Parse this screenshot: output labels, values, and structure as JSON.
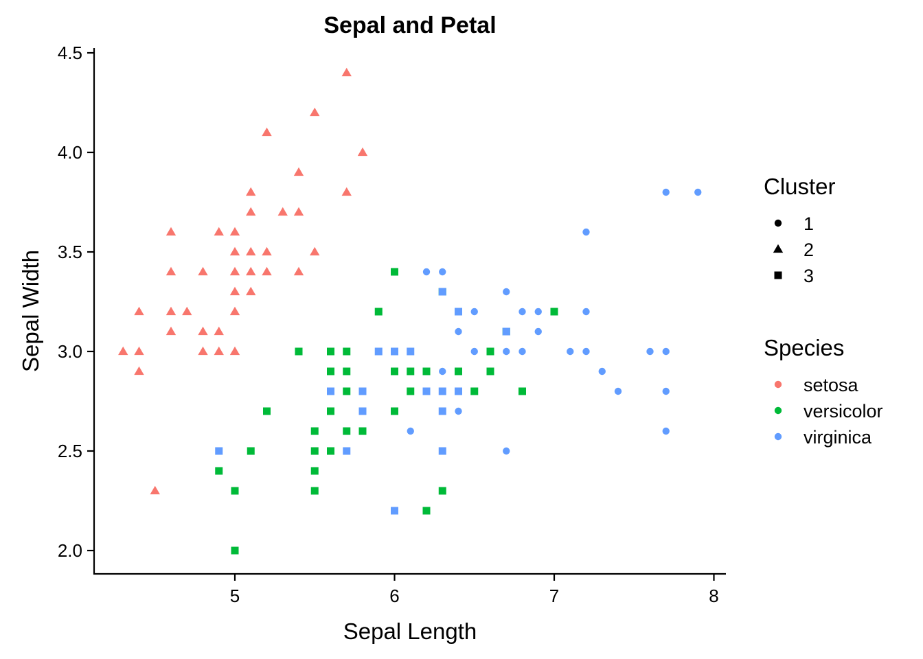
{
  "chart_data": {
    "type": "scatter",
    "title": "Sepal and Petal",
    "xlabel": "Sepal Length",
    "ylabel": "Sepal Width",
    "xlim": [
      4.2,
      8.08
    ],
    "ylim": [
      1.88,
      4.53
    ],
    "x_ticks": [
      5,
      6,
      7,
      8
    ],
    "y_ticks": [
      2.0,
      2.5,
      3.0,
      3.5,
      4.0,
      4.5
    ],
    "x_tick_labels": [
      "5",
      "6",
      "7",
      "8"
    ],
    "y_tick_labels": [
      "2.0",
      "2.5",
      "3.0",
      "3.5",
      "4.0",
      "4.5"
    ],
    "grid": false,
    "legend_placement": "right",
    "legends": {
      "shape": {
        "title": "Cluster",
        "entries": [
          {
            "label": "1",
            "shape": "circle"
          },
          {
            "label": "2",
            "shape": "triangle"
          },
          {
            "label": "3",
            "shape": "square"
          }
        ]
      },
      "color": {
        "title": "Species",
        "entries": [
          {
            "label": "setosa",
            "color": "#F8766D"
          },
          {
            "label": "versicolor",
            "color": "#00BA38"
          },
          {
            "label": "virginica",
            "color": "#619CFF"
          }
        ]
      }
    },
    "series": [
      {
        "species": "setosa",
        "cluster": "2",
        "color": "#F8766D",
        "shape": "triangle",
        "points": [
          [
            4.3,
            3.0
          ],
          [
            4.4,
            3.2
          ],
          [
            4.4,
            3.0
          ],
          [
            4.4,
            2.9
          ],
          [
            4.5,
            2.3
          ],
          [
            4.6,
            3.6
          ],
          [
            4.6,
            3.4
          ],
          [
            4.6,
            3.2
          ],
          [
            4.6,
            3.1
          ],
          [
            4.7,
            3.2
          ],
          [
            4.8,
            3.4
          ],
          [
            4.8,
            3.1
          ],
          [
            4.8,
            3.0
          ],
          [
            4.9,
            3.6
          ],
          [
            4.9,
            3.1
          ],
          [
            4.9,
            3.0
          ],
          [
            5.0,
            3.6
          ],
          [
            5.0,
            3.5
          ],
          [
            5.0,
            3.4
          ],
          [
            5.0,
            3.3
          ],
          [
            5.0,
            3.2
          ],
          [
            5.0,
            3.0
          ],
          [
            5.1,
            3.8
          ],
          [
            5.1,
            3.7
          ],
          [
            5.1,
            3.5
          ],
          [
            5.1,
            3.4
          ],
          [
            5.1,
            3.3
          ],
          [
            5.2,
            4.1
          ],
          [
            5.2,
            3.5
          ],
          [
            5.2,
            3.4
          ],
          [
            5.3,
            3.7
          ],
          [
            5.4,
            3.9
          ],
          [
            5.4,
            3.7
          ],
          [
            5.4,
            3.4
          ],
          [
            5.5,
            4.2
          ],
          [
            5.5,
            3.5
          ],
          [
            5.7,
            4.4
          ],
          [
            5.7,
            3.8
          ],
          [
            5.8,
            4.0
          ]
        ]
      },
      {
        "species": "versicolor",
        "cluster": "3",
        "color": "#00BA38",
        "shape": "square",
        "points": [
          [
            4.9,
            2.4
          ],
          [
            5.0,
            2.3
          ],
          [
            5.0,
            2.0
          ],
          [
            5.1,
            2.5
          ],
          [
            5.2,
            2.7
          ],
          [
            5.4,
            3.0
          ],
          [
            5.5,
            2.6
          ],
          [
            5.5,
            2.5
          ],
          [
            5.5,
            2.4
          ],
          [
            5.5,
            2.3
          ],
          [
            5.6,
            3.0
          ],
          [
            5.6,
            2.9
          ],
          [
            5.6,
            2.7
          ],
          [
            5.6,
            2.5
          ],
          [
            5.7,
            3.0
          ],
          [
            5.7,
            2.9
          ],
          [
            5.7,
            2.8
          ],
          [
            5.7,
            2.6
          ],
          [
            5.8,
            2.7
          ],
          [
            5.8,
            2.6
          ],
          [
            5.9,
            3.2
          ],
          [
            6.0,
            3.4
          ],
          [
            6.0,
            2.9
          ],
          [
            6.0,
            2.7
          ],
          [
            6.1,
            2.9
          ],
          [
            6.1,
            2.8
          ],
          [
            6.2,
            2.9
          ],
          [
            6.2,
            2.2
          ],
          [
            6.3,
            3.3
          ],
          [
            6.3,
            2.3
          ],
          [
            6.4,
            2.9
          ],
          [
            6.5,
            2.8
          ],
          [
            6.6,
            3.0
          ],
          [
            6.6,
            2.9
          ],
          [
            6.7,
            3.1
          ],
          [
            6.8,
            2.8
          ],
          [
            7.0,
            3.2
          ]
        ]
      },
      {
        "species": "virginica",
        "cluster": "3",
        "color": "#619CFF",
        "shape": "square",
        "points": [
          [
            4.9,
            2.5
          ],
          [
            5.6,
            2.8
          ],
          [
            5.7,
            2.5
          ],
          [
            5.8,
            2.8
          ],
          [
            5.8,
            2.7
          ],
          [
            5.9,
            3.0
          ],
          [
            6.0,
            3.0
          ],
          [
            6.0,
            2.2
          ],
          [
            6.1,
            3.0
          ],
          [
            6.2,
            2.8
          ],
          [
            6.3,
            3.3
          ],
          [
            6.3,
            2.8
          ],
          [
            6.3,
            2.7
          ],
          [
            6.3,
            2.5
          ],
          [
            6.4,
            3.2
          ],
          [
            6.4,
            2.8
          ],
          [
            6.7,
            3.1
          ]
        ]
      },
      {
        "species": "virginica",
        "cluster": "1",
        "color": "#619CFF",
        "shape": "circle",
        "points": [
          [
            6.1,
            2.6
          ],
          [
            6.2,
            3.4
          ],
          [
            6.3,
            3.4
          ],
          [
            6.3,
            2.9
          ],
          [
            6.4,
            3.1
          ],
          [
            6.4,
            2.8
          ],
          [
            6.4,
            2.7
          ],
          [
            6.5,
            3.2
          ],
          [
            6.5,
            3.0
          ],
          [
            6.7,
            3.3
          ],
          [
            6.7,
            3.1
          ],
          [
            6.7,
            3.0
          ],
          [
            6.7,
            2.5
          ],
          [
            6.8,
            3.2
          ],
          [
            6.8,
            3.0
          ],
          [
            6.9,
            3.2
          ],
          [
            6.9,
            3.1
          ],
          [
            7.1,
            3.0
          ],
          [
            7.2,
            3.6
          ],
          [
            7.2,
            3.2
          ],
          [
            7.2,
            3.0
          ],
          [
            7.3,
            2.9
          ],
          [
            7.4,
            2.8
          ],
          [
            7.6,
            3.0
          ],
          [
            7.7,
            3.8
          ],
          [
            7.7,
            3.0
          ],
          [
            7.7,
            2.8
          ],
          [
            7.7,
            2.6
          ],
          [
            7.9,
            3.8
          ]
        ]
      }
    ]
  }
}
